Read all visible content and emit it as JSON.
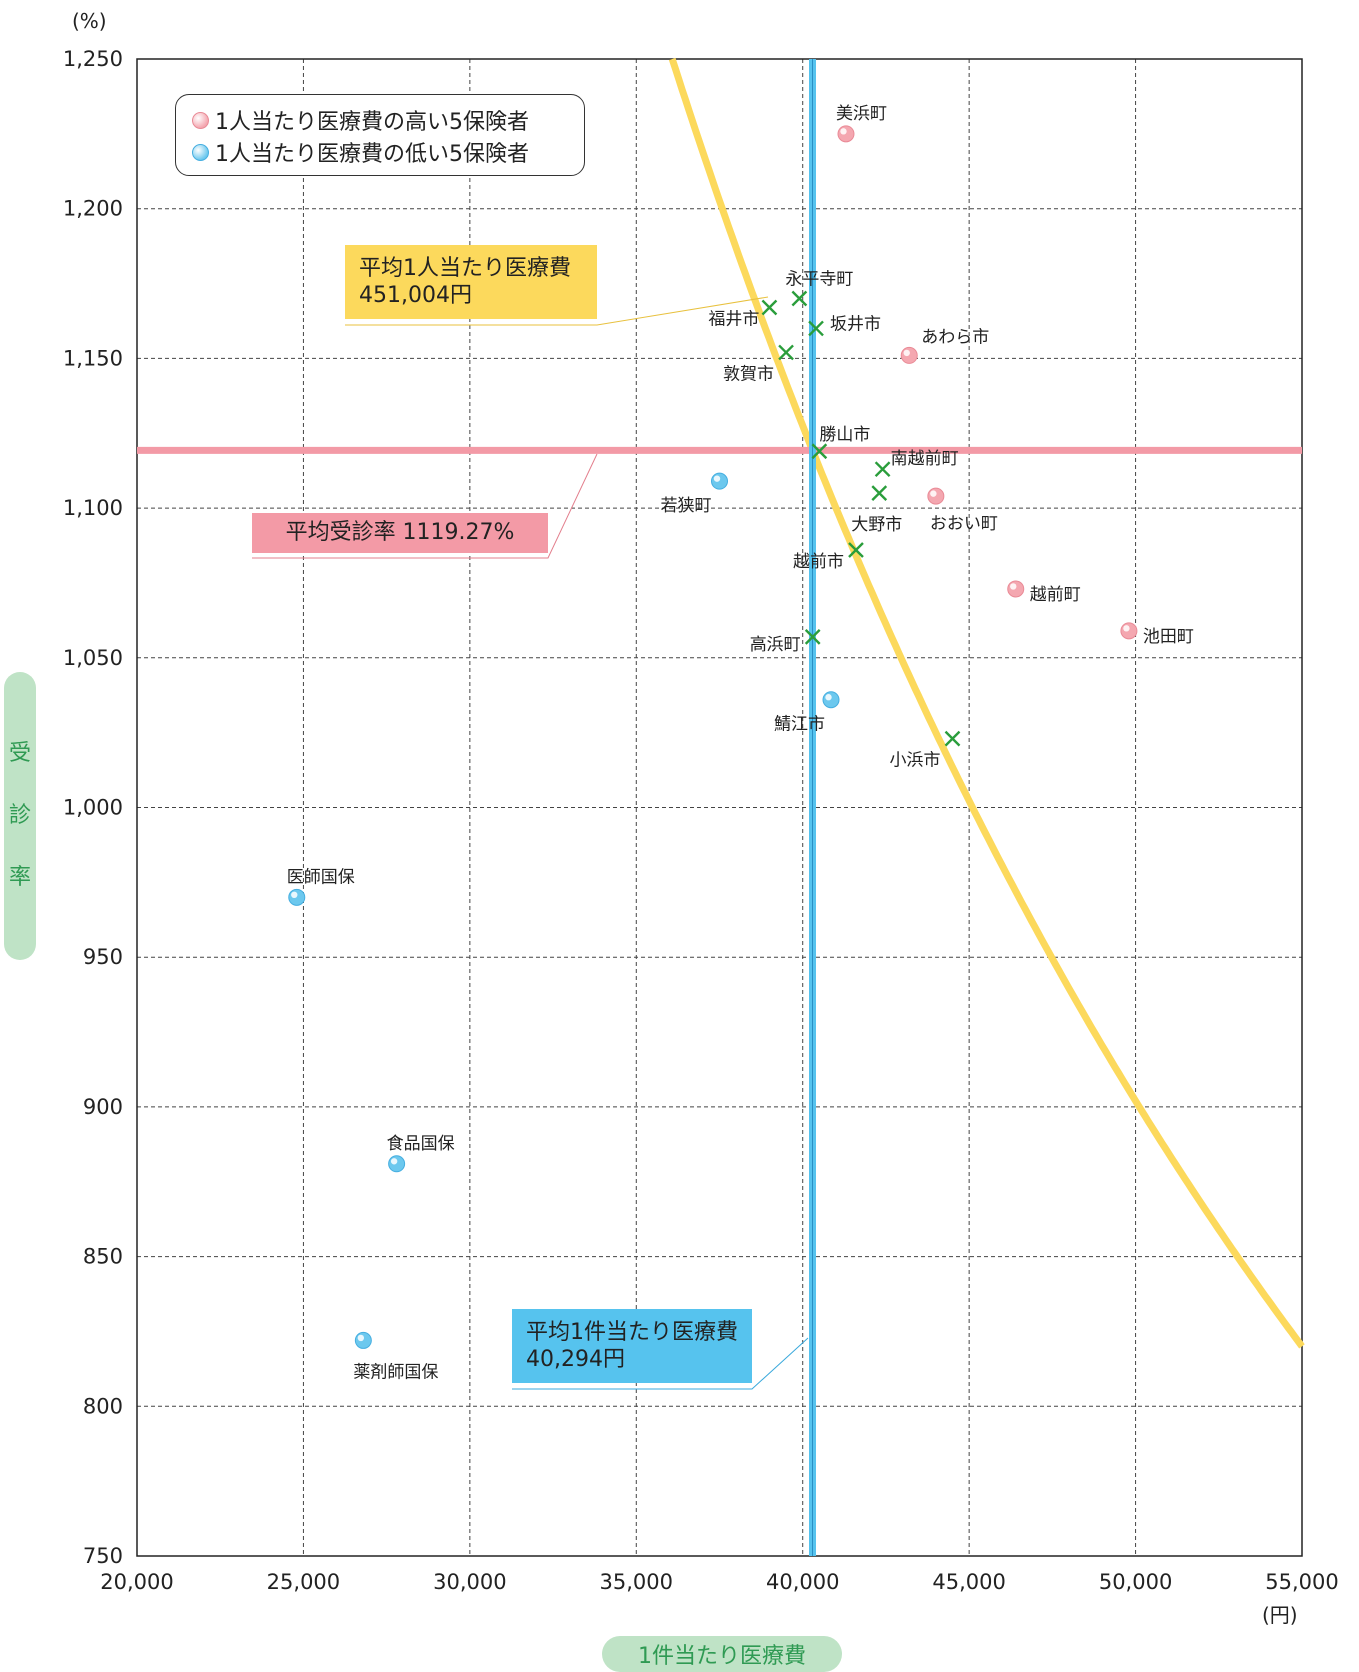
{
  "chart_data": {
    "type": "scatter",
    "title": "",
    "xlabel": "1件当たり医療費",
    "ylabel": "受診率",
    "x_unit": "(円)",
    "y_unit": "(%)",
    "xlim": [
      20000,
      55000
    ],
    "ylim": [
      750,
      1250
    ],
    "x_ticks": [
      "20,000",
      "25,000",
      "30,000",
      "35,000",
      "40,000",
      "45,000",
      "50,000",
      "55,000"
    ],
    "y_ticks": [
      "1,250",
      "1,200",
      "1,150",
      "1,100",
      "1,050",
      "1,000",
      "950",
      "900",
      "850",
      "800",
      "750"
    ],
    "x_tick_values": [
      20000,
      25000,
      30000,
      35000,
      40000,
      45000,
      50000,
      55000
    ],
    "y_tick_values": [
      1250,
      1200,
      1150,
      1100,
      1050,
      1000,
      950,
      900,
      850,
      800,
      750
    ],
    "grid": true,
    "legend_position": "top-left",
    "legend": [
      {
        "label": "1人当たり医療費の高い5保険者",
        "color": "#f4a7b0"
      },
      {
        "label": "1人当たり医療費の低い5保険者",
        "color": "#6cc8ee"
      }
    ],
    "reference_lines": {
      "avg_rate": {
        "label": "平均受診率 1119.27%",
        "value": 1119.27,
        "color": "#f39aa6"
      },
      "avg_case_cost": {
        "label_line1": "平均1件当たり医療費",
        "label_line2": "40,294円",
        "value": 40294,
        "color": "#56c3ee"
      },
      "avg_per_capita": {
        "label_line1": "平均1人当たり医療費",
        "label_line2": "451,004円",
        "value": 451004,
        "color": "#fcd95c"
      }
    },
    "series": [
      {
        "name": "1人当たり医療費の高い5保険者",
        "marker": "circle",
        "color": "#f4a7b0",
        "points": [
          {
            "label": "美浜町",
            "x": 41300,
            "y": 1225
          },
          {
            "label": "あわら市",
            "x": 43200,
            "y": 1151
          },
          {
            "label": "おおい町",
            "x": 44000,
            "y": 1104
          },
          {
            "label": "越前町",
            "x": 46400,
            "y": 1073
          },
          {
            "label": "池田町",
            "x": 49800,
            "y": 1059
          }
        ]
      },
      {
        "name": "1人当たり医療費の低い5保険者",
        "marker": "circle",
        "color": "#6cc8ee",
        "points": [
          {
            "label": "若狭町",
            "x": 37500,
            "y": 1109
          },
          {
            "label": "鯖江市",
            "x": 40850,
            "y": 1036
          },
          {
            "label": "医師国保",
            "x": 24800,
            "y": 970
          },
          {
            "label": "食品国保",
            "x": 27800,
            "y": 881
          },
          {
            "label": "薬剤師国保",
            "x": 26800,
            "y": 822
          }
        ]
      },
      {
        "marker": "cross",
        "color": "#2a9d3b",
        "points": [
          {
            "label": "福井市",
            "x": 39000,
            "y": 1167
          },
          {
            "label": "永平寺町",
            "x": 39900,
            "y": 1170
          },
          {
            "label": "坂井市",
            "x": 40400,
            "y": 1160
          },
          {
            "label": "敦賀市",
            "x": 39500,
            "y": 1152
          },
          {
            "label": "勝山市",
            "x": 40500,
            "y": 1119
          },
          {
            "label": "南越前町",
            "x": 42400,
            "y": 1113
          },
          {
            "label": "大野市",
            "x": 42300,
            "y": 1105
          },
          {
            "label": "越前市",
            "x": 41600,
            "y": 1086
          },
          {
            "label": "高浜町",
            "x": 40300,
            "y": 1057
          },
          {
            "label": "小浜市",
            "x": 44500,
            "y": 1023
          }
        ]
      }
    ]
  }
}
